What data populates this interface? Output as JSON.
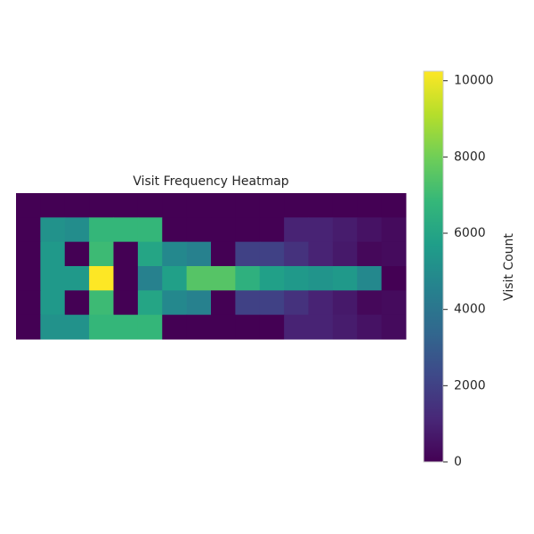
{
  "chart_data": {
    "type": "heatmap",
    "title": "Visit Frequency Heatmap",
    "colormap": "viridis",
    "values": [
      [
        0,
        0,
        0,
        0,
        0,
        0,
        0,
        0,
        0,
        0,
        0,
        0,
        0,
        0,
        0,
        0
      ],
      [
        0,
        5200,
        5000,
        6800,
        6800,
        6800,
        0,
        0,
        0,
        0,
        0,
        1000,
        1000,
        800,
        500,
        300
      ],
      [
        0,
        5500,
        0,
        7000,
        0,
        6000,
        4800,
        4500,
        0,
        2000,
        2000,
        1500,
        1000,
        700,
        200,
        300
      ],
      [
        0,
        5500,
        5500,
        10250,
        0,
        4500,
        5800,
        7500,
        7500,
        6500,
        5800,
        5500,
        5300,
        5500,
        4800,
        0
      ],
      [
        0,
        5500,
        0,
        7000,
        0,
        6000,
        4800,
        4500,
        0,
        2000,
        2000,
        1500,
        1000,
        700,
        200,
        300
      ],
      [
        0,
        5200,
        5200,
        6800,
        6800,
        6800,
        0,
        0,
        0,
        0,
        0,
        1000,
        1000,
        800,
        500,
        300
      ]
    ],
    "colorbar": {
      "label": "Visit Count",
      "lim": [
        0,
        10250
      ],
      "ticks": [
        0,
        2000,
        4000,
        6000,
        8000,
        10000
      ]
    }
  }
}
